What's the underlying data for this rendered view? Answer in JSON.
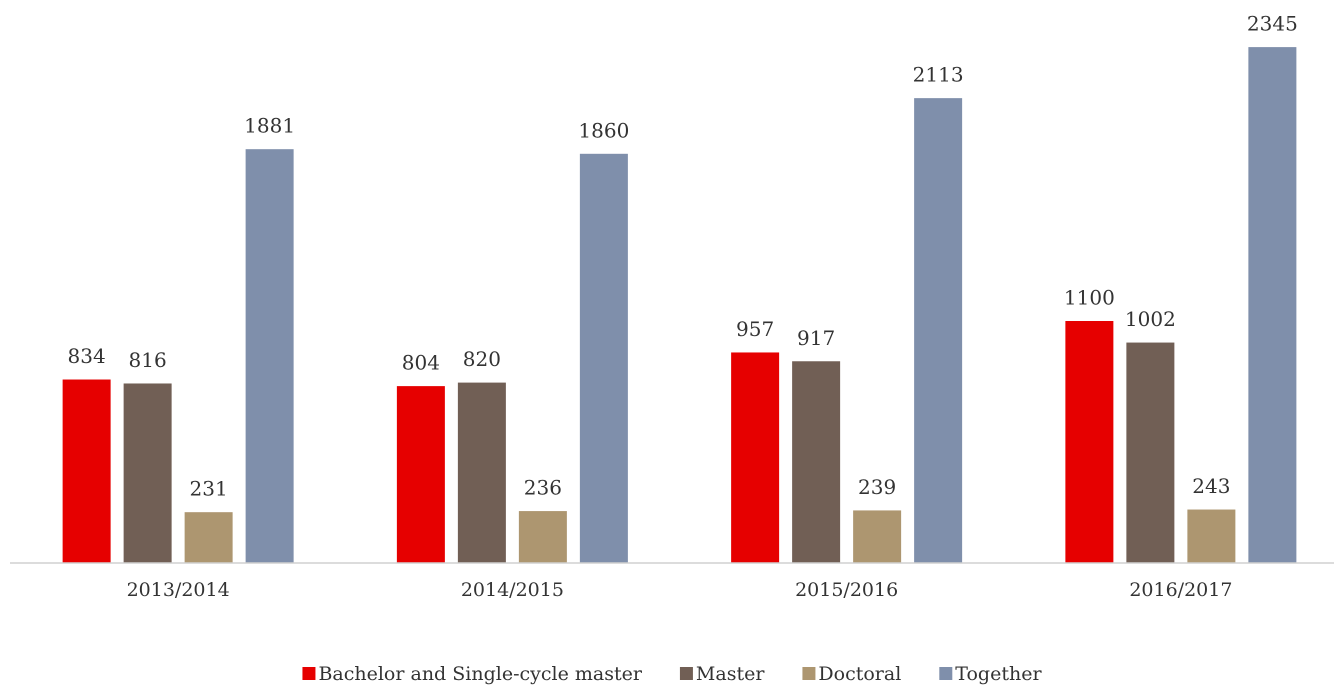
{
  "chart_data": {
    "type": "bar",
    "categories": [
      "2013/2014",
      "2014/2015",
      "2015/2016",
      "2016/2017"
    ],
    "series": [
      {
        "name": "Bachelor and Single-cycle master",
        "color": "#e60000",
        "values": [
          834,
          804,
          957,
          1100
        ]
      },
      {
        "name": "Master",
        "color": "#715f55",
        "values": [
          816,
          820,
          917,
          1002
        ]
      },
      {
        "name": "Doctoral",
        "color": "#ad9670",
        "values": [
          231,
          236,
          239,
          243
        ]
      },
      {
        "name": "Together",
        "color": "#7f8fab",
        "values": [
          1881,
          1860,
          2113,
          2345
        ]
      }
    ],
    "ylim": [
      0,
      2500
    ],
    "legend": "bottom"
  }
}
